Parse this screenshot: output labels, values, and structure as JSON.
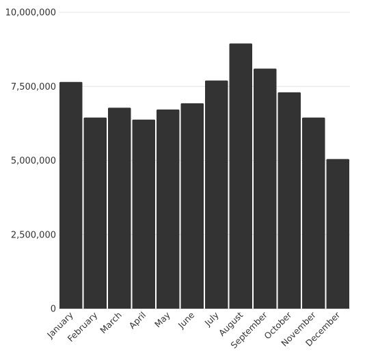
{
  "chart_data": {
    "type": "bar",
    "categories": [
      "January",
      "February",
      "March",
      "April",
      "May",
      "June",
      "July",
      "August",
      "September",
      "October",
      "November",
      "December"
    ],
    "values": [
      7650000,
      6450000,
      6780000,
      6380000,
      6720000,
      6930000,
      7700000,
      8950000,
      8100000,
      7300000,
      6450000,
      5050000
    ],
    "ylim": [
      0,
      10000000
    ],
    "yticks": [
      0,
      2500000,
      5000000,
      7500000,
      10000000
    ],
    "ytick_labels": [
      "0",
      "2,500,000",
      "5,000,000",
      "7,500,000",
      "10,000,000"
    ],
    "grid": true,
    "bar_color": "#333333",
    "title": "",
    "xlabel": "",
    "ylabel": ""
  }
}
